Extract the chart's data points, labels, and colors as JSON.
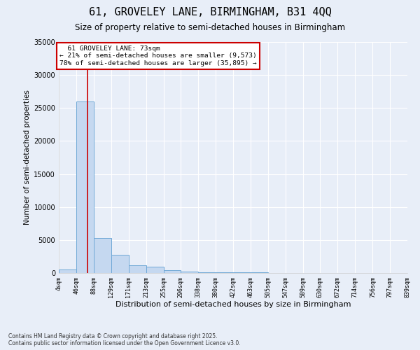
{
  "title": "61, GROVELEY LANE, BIRMINGHAM, B31 4QQ",
  "subtitle": "Size of property relative to semi-detached houses in Birmingham",
  "xlabel": "Distribution of semi-detached houses by size in Birmingham",
  "ylabel": "Number of semi-detached properties",
  "bin_edges": [
    4,
    46,
    88,
    129,
    171,
    213,
    255,
    296,
    338,
    380,
    422,
    463,
    505,
    547,
    589,
    630,
    672,
    714,
    756,
    797,
    839
  ],
  "bar_heights": [
    500,
    26000,
    5300,
    2800,
    1200,
    1000,
    400,
    200,
    150,
    100,
    80,
    60,
    50,
    40,
    30,
    20,
    15,
    10,
    8,
    5
  ],
  "bar_color": "#c5d8f0",
  "bar_edge_color": "#6fa8d6",
  "property_size": 73,
  "property_label": "61 GROVELEY LANE: 73sqm",
  "pct_smaller": 21,
  "n_smaller": 9573,
  "pct_larger": 78,
  "n_larger": 35895,
  "annotation_box_color": "white",
  "annotation_box_edge_color": "#cc0000",
  "vline_color": "#cc0000",
  "ylim": [
    0,
    35000
  ],
  "yticks": [
    0,
    5000,
    10000,
    15000,
    20000,
    25000,
    30000,
    35000
  ],
  "background_color": "#e8eef8",
  "grid_color": "white",
  "footer_line1": "Contains HM Land Registry data © Crown copyright and database right 2025.",
  "footer_line2": "Contains public sector information licensed under the Open Government Licence v3.0."
}
